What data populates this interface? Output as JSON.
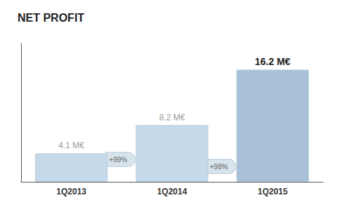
{
  "chart_data": {
    "type": "bar",
    "title": "NET PROFIT",
    "categories": [
      "1Q2013",
      "1Q2014",
      "1Q2015"
    ],
    "values": [
      4.1,
      8.2,
      16.2
    ],
    "value_labels": [
      "4.1 M€",
      "8.2 M€",
      "16.2 M€"
    ],
    "data_labels": true,
    "colors": [
      "#c5d9ea",
      "#c5d9ea",
      "#a8c0d8"
    ],
    "annotations": [
      "+99%",
      "+98%"
    ],
    "ylim": [
      0,
      20
    ],
    "grid": false,
    "tick_labels": "x"
  }
}
